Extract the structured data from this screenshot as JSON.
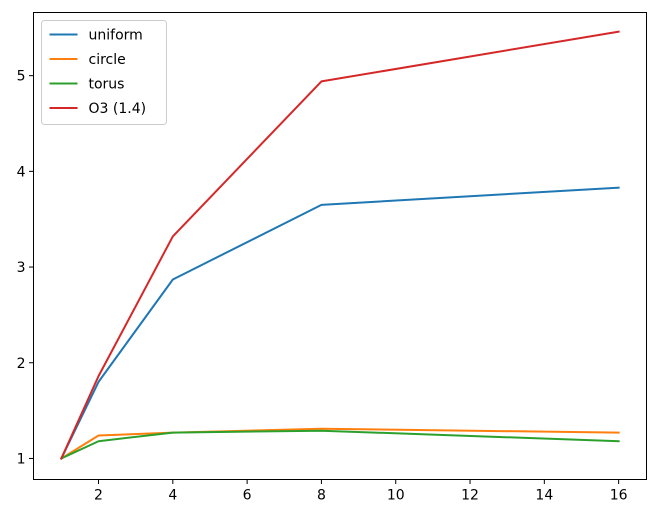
{
  "chart_data": {
    "type": "line",
    "title": "",
    "xlabel": "",
    "ylabel": "",
    "x": [
      1,
      2,
      4,
      8,
      16
    ],
    "xlim": [
      0.25,
      16.75
    ],
    "ylim": [
      0.78,
      5.66
    ],
    "xticks": [
      2,
      4,
      6,
      8,
      10,
      12,
      14,
      16
    ],
    "yticks": [
      1,
      2,
      3,
      4,
      5
    ],
    "grid": false,
    "legend_position": "top-left",
    "series": [
      {
        "name": "uniform",
        "color": "#1f77b4",
        "values": [
          1.0,
          1.8,
          2.87,
          3.65,
          3.83
        ]
      },
      {
        "name": "circle",
        "color": "#ff7f0e",
        "values": [
          1.0,
          1.24,
          1.27,
          1.31,
          1.27
        ]
      },
      {
        "name": "torus",
        "color": "#2ca02c",
        "values": [
          1.0,
          1.18,
          1.27,
          1.29,
          1.18
        ]
      },
      {
        "name": "O3 (1.4)",
        "color": "#d62728",
        "values": [
          1.0,
          1.86,
          3.32,
          4.94,
          5.46
        ]
      }
    ]
  }
}
